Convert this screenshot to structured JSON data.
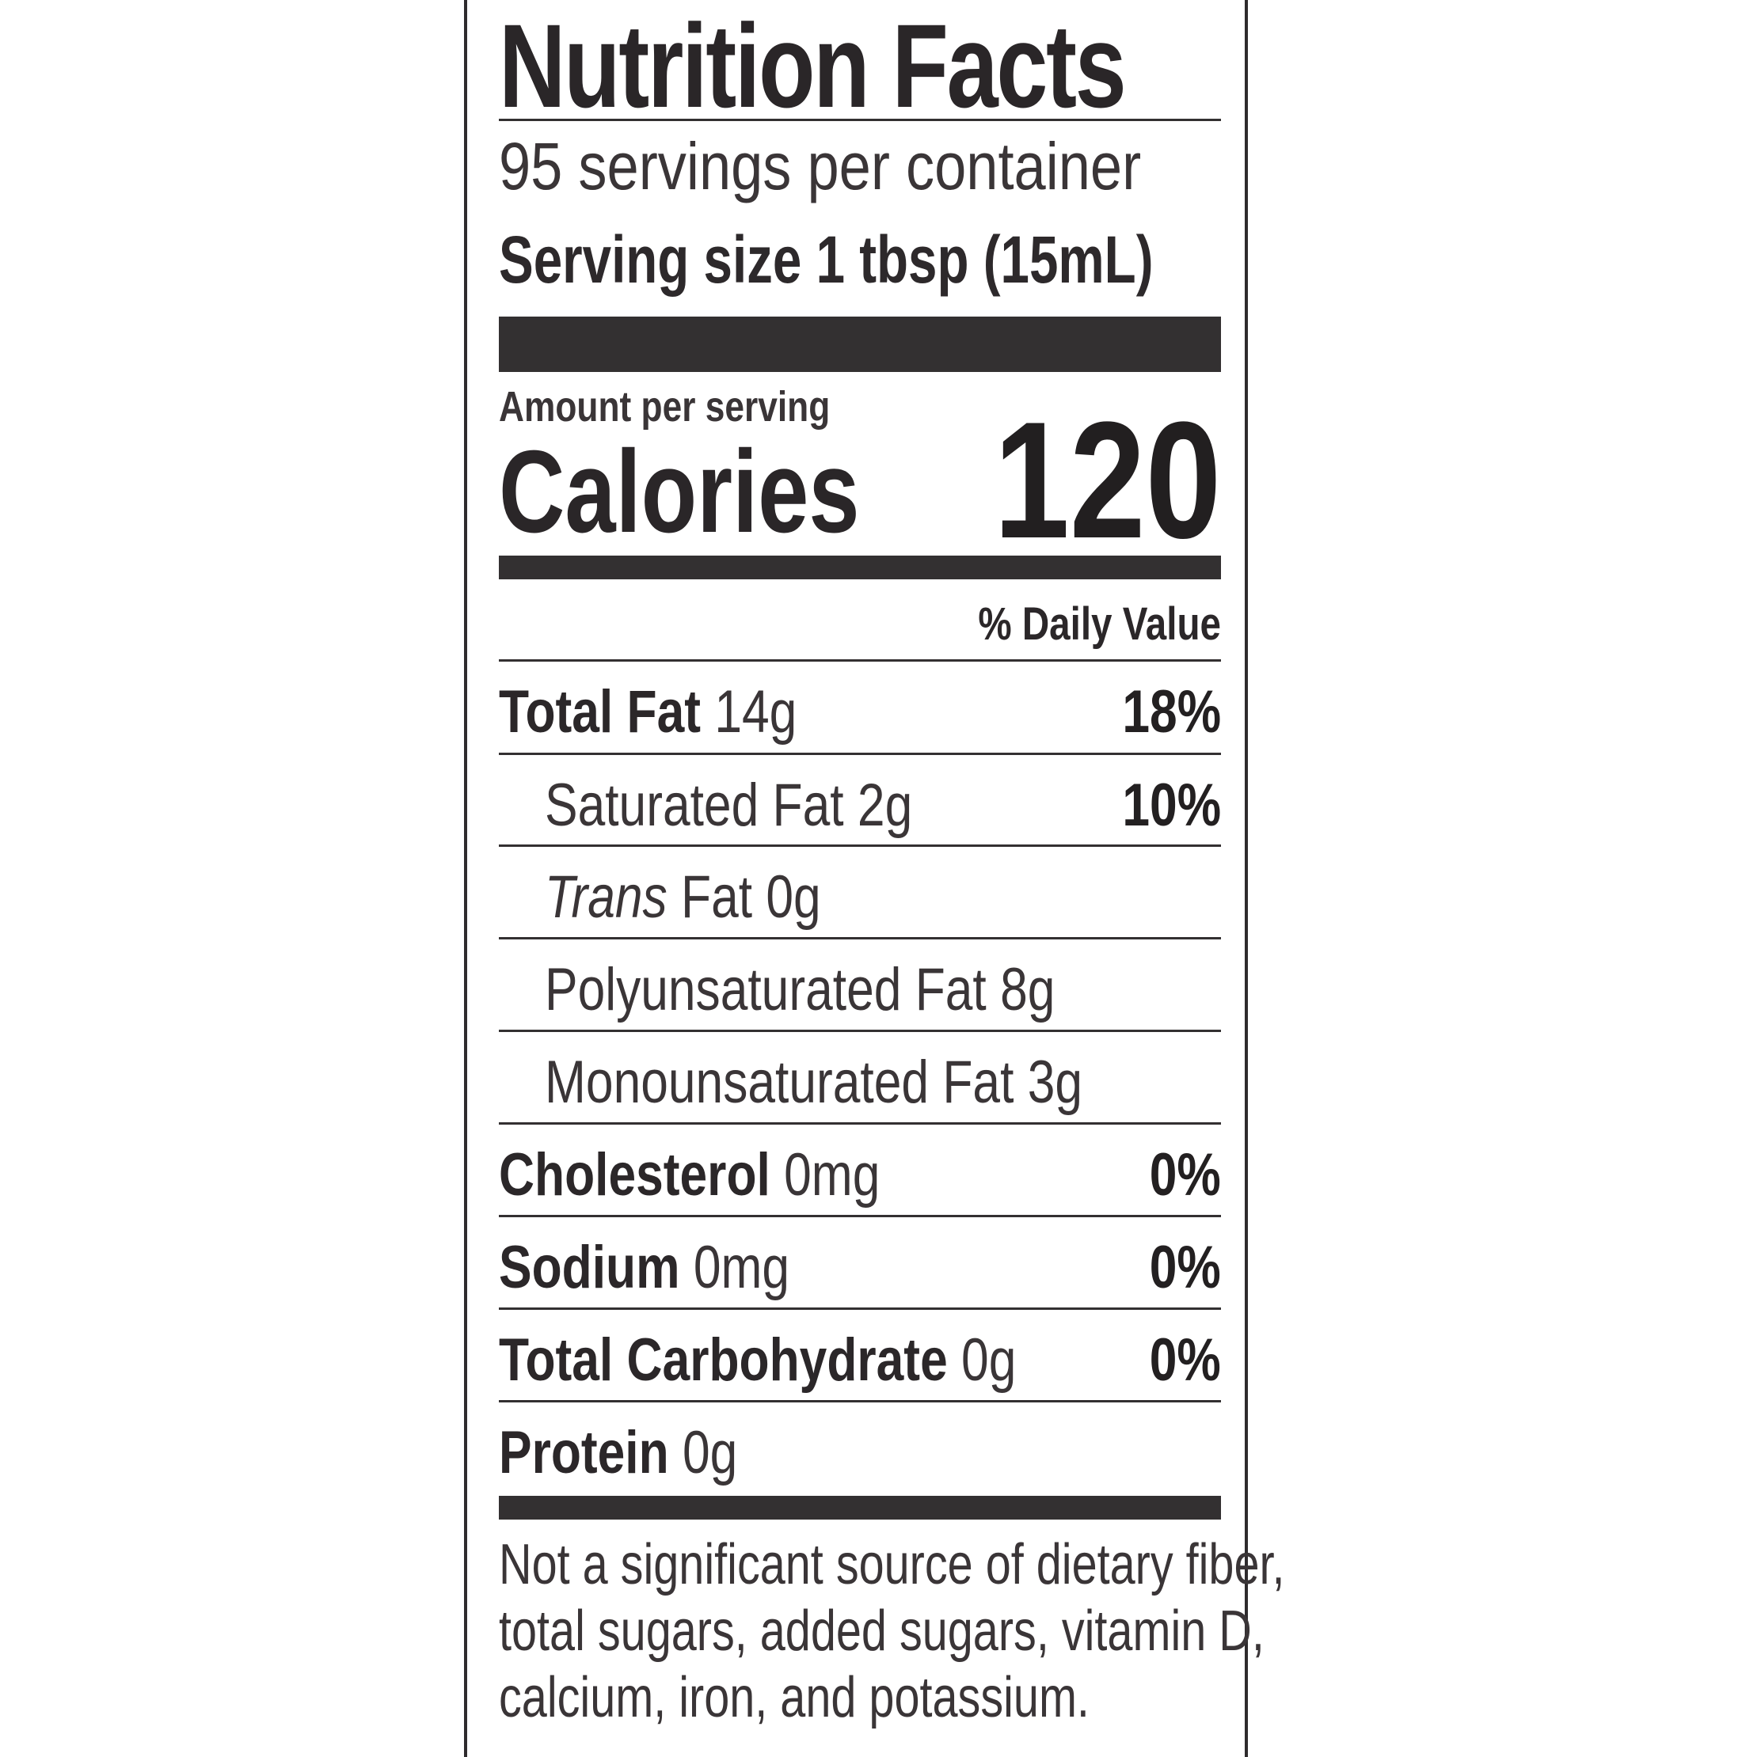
{
  "label": {
    "title": "Nutrition Facts",
    "servings_per_container": "95 servings per container",
    "serving_size": "Serving size 1 tbsp (15mL)",
    "amount_per_serving": "Amount per serving",
    "calories_label": "Calories",
    "calories_value": "120",
    "daily_value_header": "% Daily Value",
    "nutrients": [
      {
        "name": "Total Fat",
        "amount": "14g",
        "pct": "18%"
      },
      {
        "name": "Saturated Fat",
        "amount": "2g",
        "pct": "10%"
      },
      {
        "name": "Trans",
        "amount": "Fat 0g",
        "pct": ""
      },
      {
        "name": "Polyunsaturated Fat",
        "amount": "8g",
        "pct": ""
      },
      {
        "name": "Monounsaturated Fat",
        "amount": "3g",
        "pct": ""
      },
      {
        "name": "Cholesterol",
        "amount": "0mg",
        "pct": "0%"
      },
      {
        "name": "Sodium",
        "amount": "0mg",
        "pct": "0%"
      },
      {
        "name": "Total Carbohydrate",
        "amount": "0g",
        "pct": "0%"
      },
      {
        "name": "Protein",
        "amount": "0g",
        "pct": ""
      }
    ],
    "footnote": [
      "Not a significant source of dietary fiber,",
      "total sugars, added sugars, vitamin D,",
      "calcium, iron, and potassium."
    ]
  }
}
